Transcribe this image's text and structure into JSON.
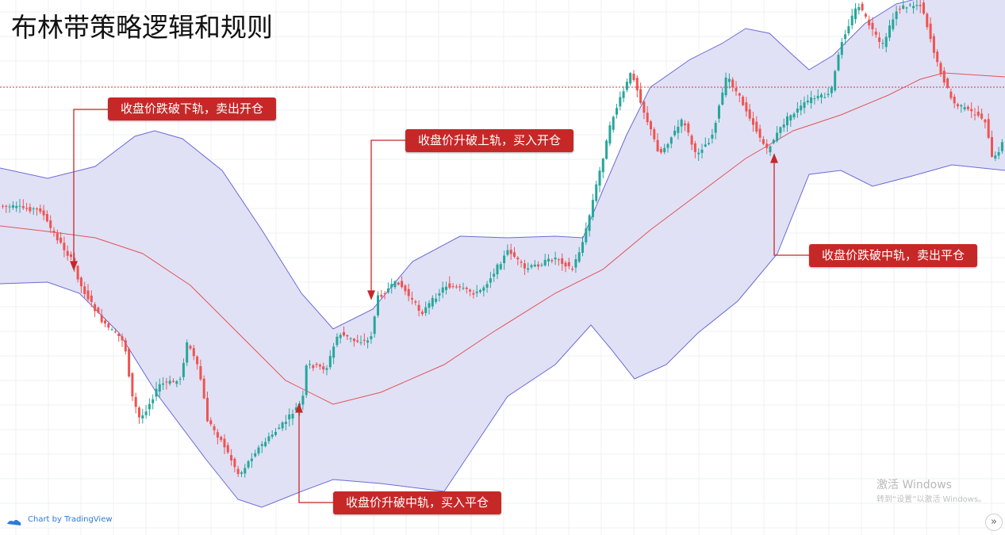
{
  "header": {
    "title": "布林带策略逻辑和规则"
  },
  "annotations": [
    "收盘价跌破下轨，卖出开仓",
    "收盘价升破上轨，买入开仓",
    "收盘价跌破中轨，卖出平仓",
    "收盘价升破中轨，买入平仓"
  ],
  "footer": {
    "brand": "Chart by TradingView",
    "watermark_title": "激活 Windows",
    "watermark_text": "转到“设置”以激活 Windows。",
    "scroll_button": "»"
  }
}
